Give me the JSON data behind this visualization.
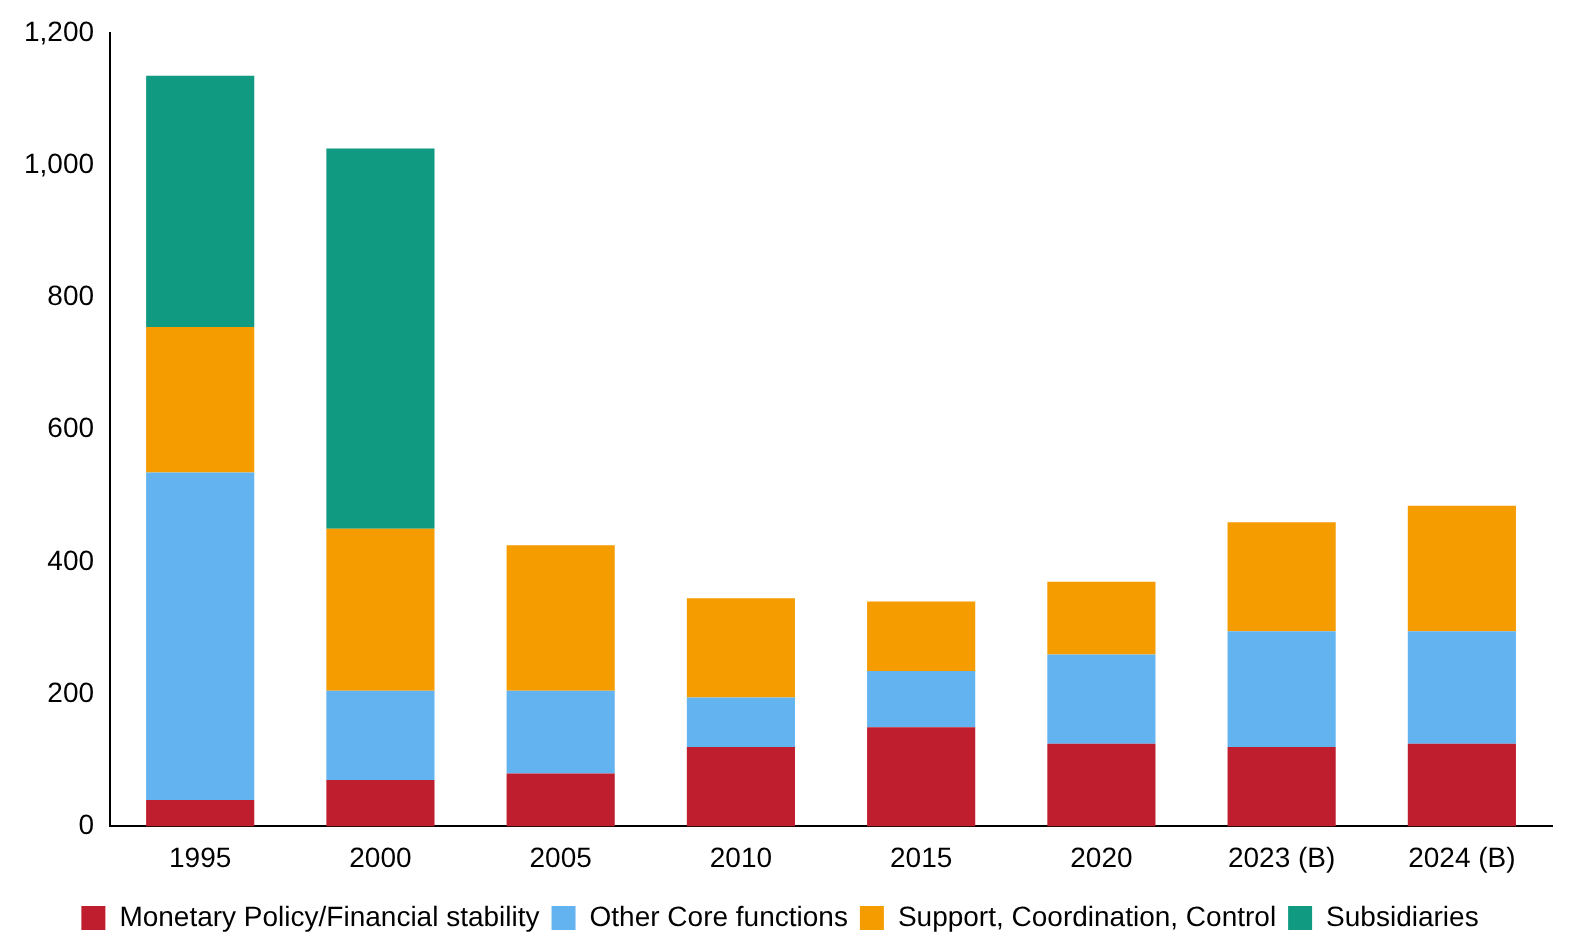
{
  "chart_data": {
    "type": "bar",
    "stacked": true,
    "categories": [
      "1995",
      "2000",
      "2005",
      "2010",
      "2015",
      "2020",
      "2023 (B)",
      "2024 (B)"
    ],
    "series": [
      {
        "name": "Monetary Policy/Financial stability",
        "color": "#be1e2d",
        "values": [
          40,
          70,
          80,
          120,
          150,
          125,
          120,
          125
        ]
      },
      {
        "name": "Other Core functions",
        "color": "#63b3f0",
        "values": [
          495,
          135,
          125,
          75,
          85,
          135,
          175,
          170
        ]
      },
      {
        "name": "Support, Coordination, Control",
        "color": "#f59c00",
        "values": [
          220,
          245,
          220,
          150,
          105,
          110,
          165,
          190
        ]
      },
      {
        "name": "Subsidiaries",
        "color": "#109a82",
        "values": [
          380,
          575,
          null,
          null,
          null,
          null,
          null,
          null
        ]
      }
    ],
    "ylim": [
      0,
      1200
    ],
    "yticks": [
      0,
      200,
      400,
      600,
      800,
      {
        "value": 1000,
        "label": "1,000"
      },
      {
        "value": 1200,
        "label": "1,200"
      }
    ],
    "grid": false,
    "legend": "bottom"
  }
}
